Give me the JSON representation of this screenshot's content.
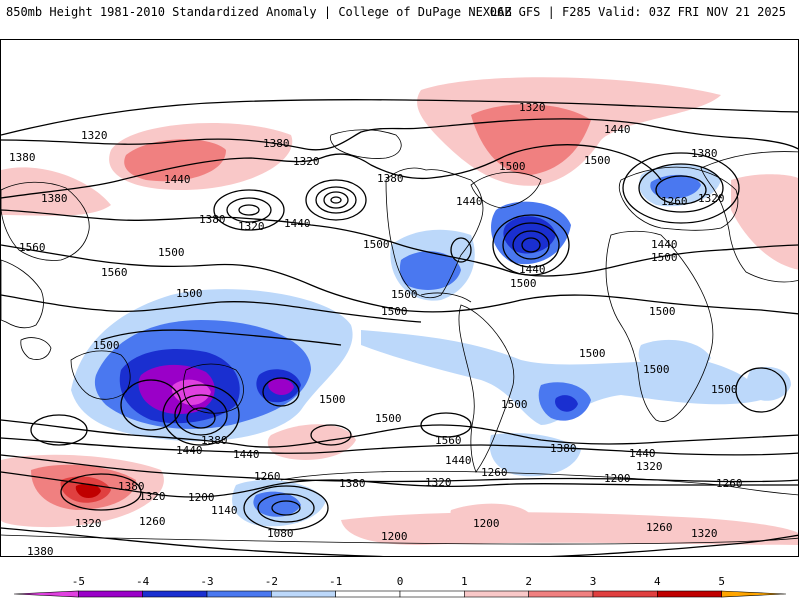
{
  "header": {
    "title_left": "850mb Height 1981-2010 Standardized Anomaly | College of DuPage NEXLAB",
    "title_right": "06Z GFS | F285 Valid: 03Z FRI NOV 21 2025"
  },
  "map": {
    "contour_labels": [
      "1320",
      "1380",
      "1440",
      "1500",
      "1560",
      "1260",
      "1200",
      "1140",
      "1080"
    ],
    "colors": {
      "neg5": "#e040e0",
      "neg4": "#9a00c8",
      "neg3": "#1a2fd0",
      "neg2": "#4a78f0",
      "neg1": "#bcd8fa",
      "zero": "#ffffff",
      "pos1": "#f9c8c8",
      "pos2": "#f08080",
      "pos3": "#e04040",
      "pos4": "#c00000",
      "pos5": "#ffa500"
    }
  },
  "colorbar": {
    "ticks": [
      "-5",
      "-4",
      "-3",
      "-2",
      "-1",
      "0",
      "1",
      "2",
      "3",
      "4",
      "5"
    ],
    "colors": [
      "#e040e0",
      "#9a00c8",
      "#1a2fd0",
      "#4a78f0",
      "#bcd8fa",
      "#ffffff",
      "#ffffff",
      "#f9c8c8",
      "#f08080",
      "#e04040",
      "#c00000",
      "#ffa500"
    ]
  }
}
